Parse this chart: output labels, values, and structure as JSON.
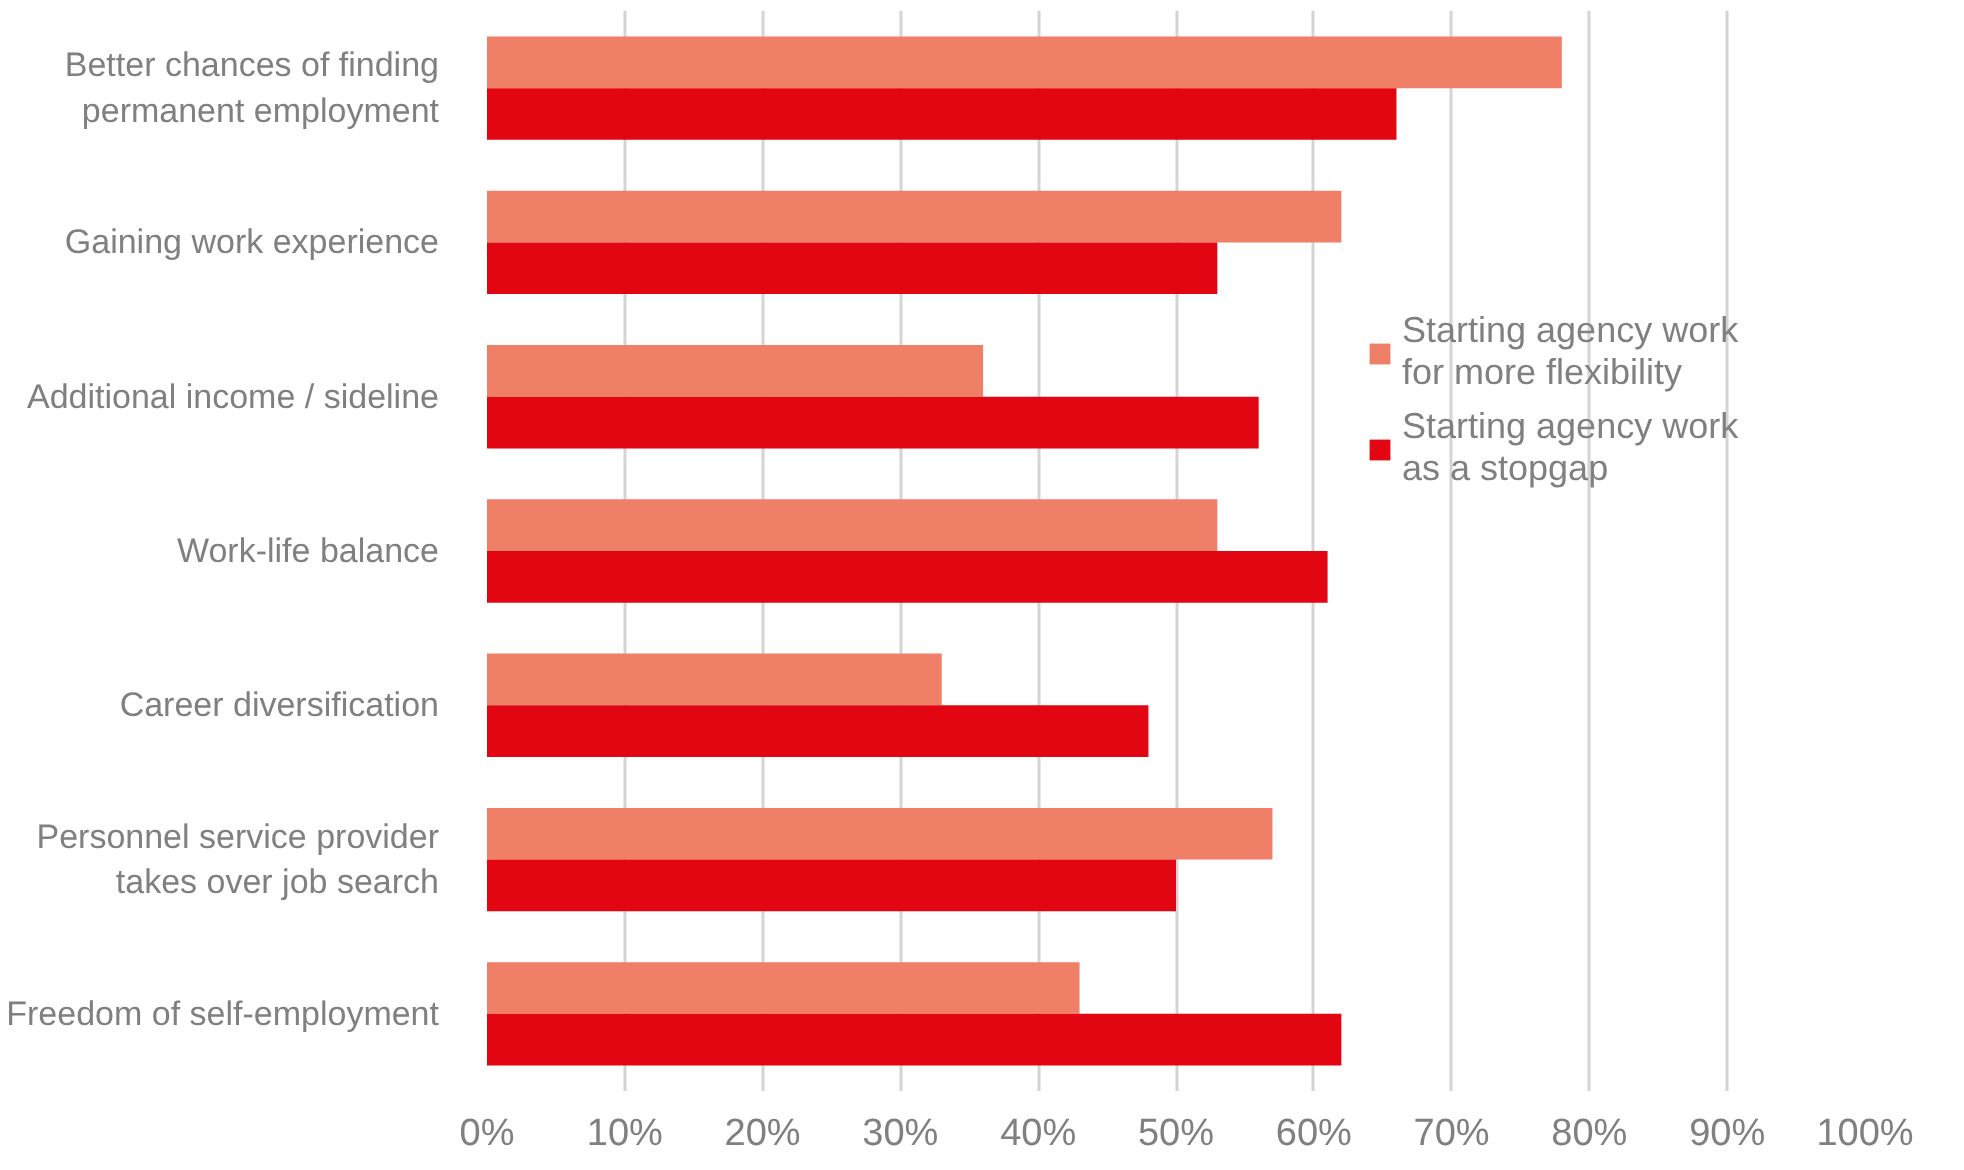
{
  "chart_data": {
    "type": "bar",
    "orientation": "horizontal",
    "categories": [
      "Better chances of finding\npermanent employment",
      "Gaining work experience",
      "Additional income / sideline",
      "Work-life balance",
      "Career diversification",
      "Personnel service provider\ntakes over job search",
      "Freedom of self-employment"
    ],
    "series": [
      {
        "name": "Starting agency work\nfor more flexibility",
        "color": "#f07f68",
        "values": [
          78,
          62,
          36,
          53,
          33,
          57,
          43
        ]
      },
      {
        "name": "Starting agency work\nas a stopgap",
        "color": "#e20613",
        "values": [
          66,
          53,
          56,
          61,
          48,
          50,
          62
        ]
      }
    ],
    "xlim": [
      0,
      100
    ],
    "xticks": [
      {
        "value": 0,
        "label": "0%"
      },
      {
        "value": 10,
        "label": "10%"
      },
      {
        "value": 20,
        "label": "20%"
      },
      {
        "value": 30,
        "label": "30%"
      },
      {
        "value": 40,
        "label": "40%"
      },
      {
        "value": 50,
        "label": "50%"
      },
      {
        "value": 60,
        "label": "60%"
      },
      {
        "value": 70,
        "label": "70%"
      },
      {
        "value": 80,
        "label": "80%"
      },
      {
        "value": 90,
        "label": "90%"
      },
      {
        "value": 100,
        "label": "100%"
      }
    ],
    "grid": "x",
    "legend": "right"
  }
}
